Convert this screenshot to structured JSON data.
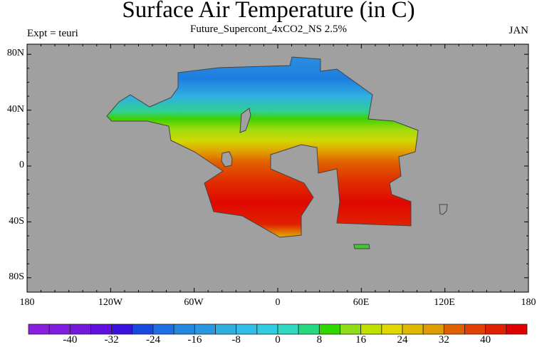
{
  "title": "Surface Air Temperature (in C)",
  "subtitle": "Future_Supercont_4xCO2_NS 2.5%",
  "left_label": "Expt = teuri",
  "right_label": "JAN",
  "lat_ticks": [
    "80N",
    "40N",
    "0",
    "40S",
    "80S"
  ],
  "lon_ticks": [
    "180",
    "120W",
    "60W",
    "0",
    "60E",
    "120E",
    "180"
  ],
  "colorbar": {
    "labels": [
      "-40",
      "-32",
      "-24",
      "-16",
      "-8",
      "0",
      "8",
      "16",
      "24",
      "32",
      "40"
    ],
    "levels_min": -44,
    "levels_max": 44,
    "level_step": 4,
    "colors": [
      "#8a1fe0",
      "#7f1ee0",
      "#7318dc",
      "#6210e0",
      "#3a12e0",
      "#1848e0",
      "#1e6ee6",
      "#2488e0",
      "#2a98e0",
      "#30aee0",
      "#30bee6",
      "#30cce0",
      "#30d8c0",
      "#28d880",
      "#30d800",
      "#90dc18",
      "#c0e000",
      "#e0d800",
      "#e0b800",
      "#e09c00",
      "#e06000",
      "#e04000",
      "#e02000",
      "#e00000"
    ]
  },
  "colors": {
    "ocean": "#a0a0a0",
    "coast": "#444444"
  }
}
